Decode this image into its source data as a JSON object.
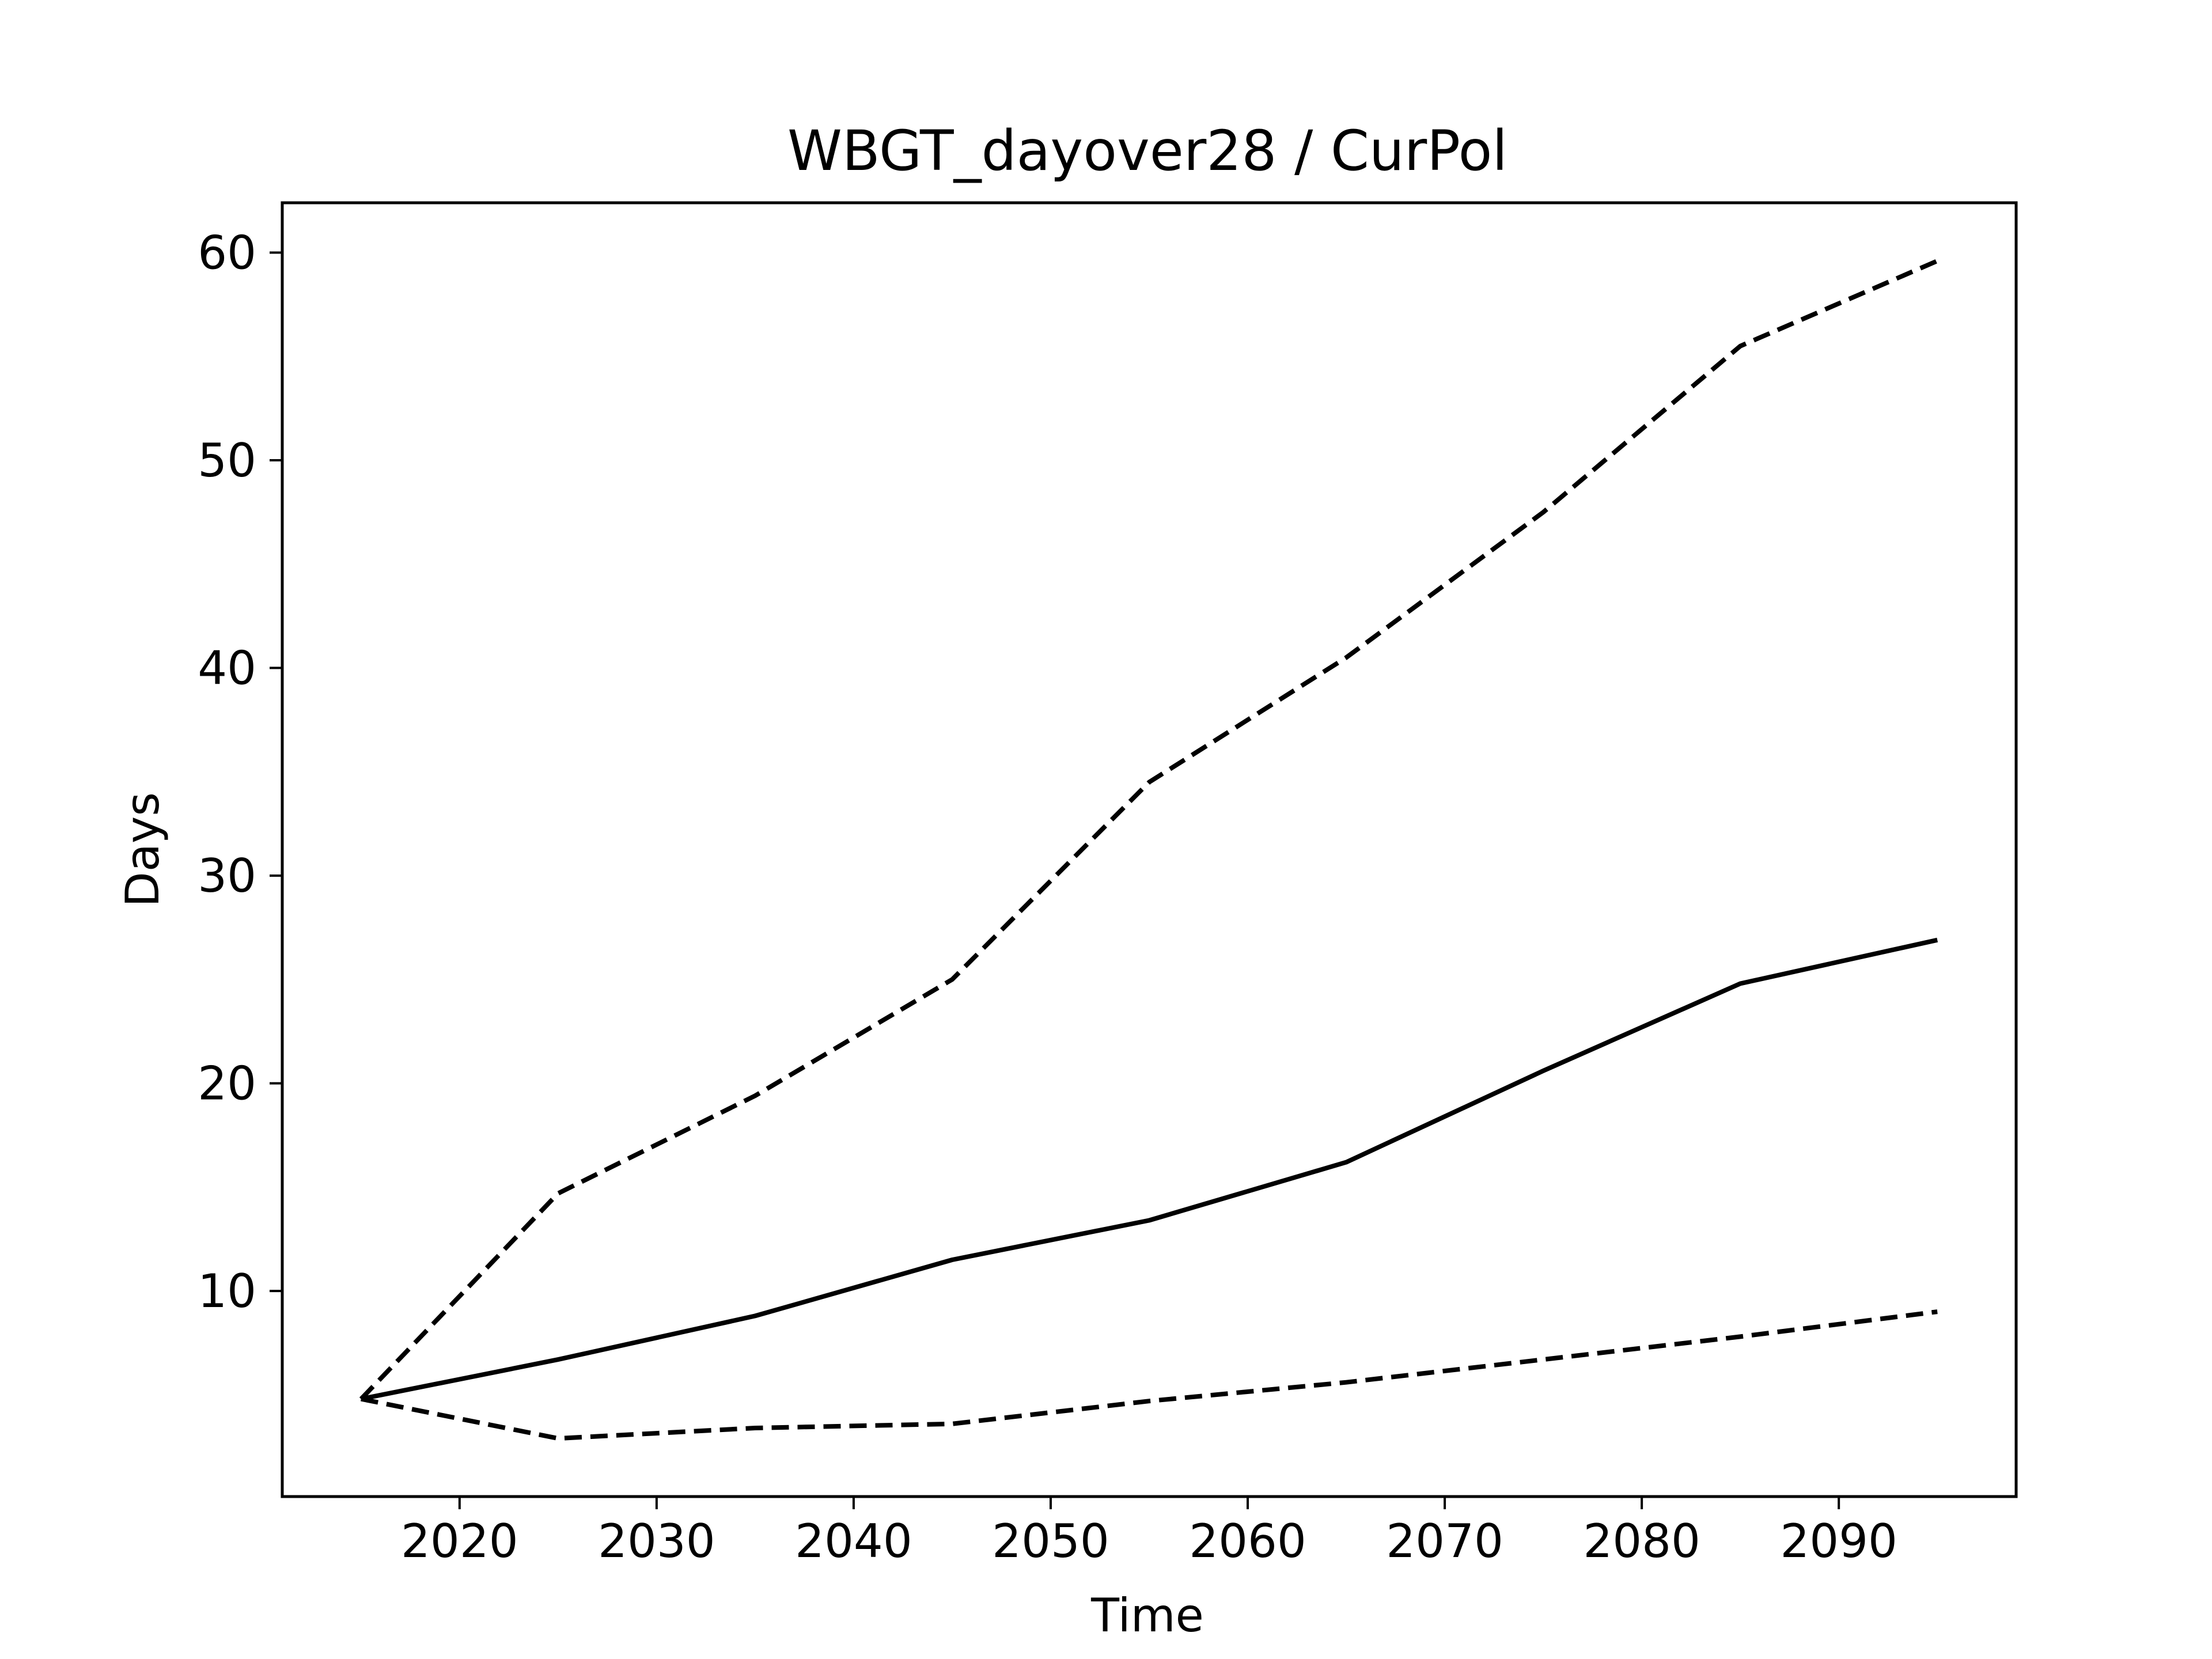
{
  "chart_data": {
    "type": "line",
    "title": "WBGT_dayover28 / CurPol",
    "xlabel": "Time",
    "ylabel": "Days",
    "xlim": [
      2011,
      2099
    ],
    "ylim": [
      0.1,
      62.4
    ],
    "x_ticks": [
      2020,
      2030,
      2040,
      2050,
      2060,
      2070,
      2080,
      2090
    ],
    "y_ticks": [
      10,
      20,
      30,
      40,
      50,
      60
    ],
    "grid": false,
    "legend": "none",
    "x": [
      2015,
      2025,
      2035,
      2045,
      2055,
      2065,
      2075,
      2085,
      2095
    ],
    "series": [
      {
        "style": "solid",
        "color": "#000000",
        "values": [
          4.8,
          6.7,
          8.8,
          11.5,
          13.4,
          16.2,
          20.6,
          24.8,
          26.9
        ]
      },
      {
        "style": "dashed",
        "color": "#000000",
        "values": [
          4.8,
          14.7,
          19.4,
          25.0,
          34.5,
          40.5,
          47.5,
          55.5,
          59.6
        ]
      },
      {
        "style": "dashed",
        "color": "#000000",
        "values": [
          4.8,
          2.9,
          3.4,
          3.6,
          4.7,
          5.6,
          6.7,
          7.8,
          9.0
        ]
      }
    ]
  }
}
